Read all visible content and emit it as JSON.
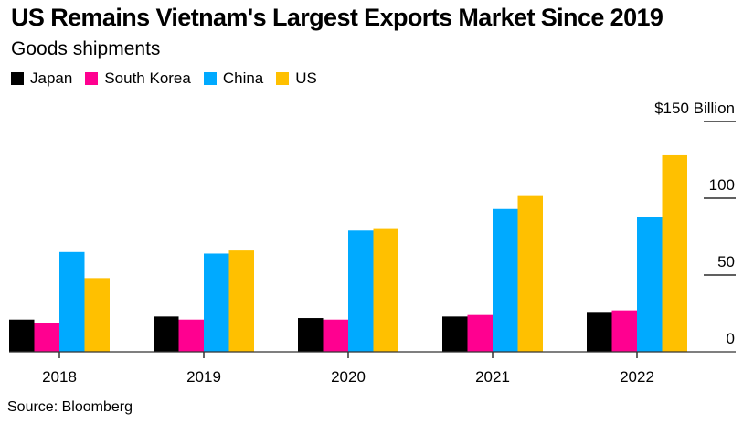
{
  "chart_data": {
    "type": "bar",
    "title": "US Remains Vietnam's Largest Exports Market Since 2019",
    "subtitle": "Goods shipments",
    "xlabel": "",
    "ylabel": "",
    "unit_label": "$150 Billion",
    "categories": [
      "2018",
      "2019",
      "2020",
      "2021",
      "2022"
    ],
    "series": [
      {
        "name": "Japan",
        "color": "#000000",
        "values": [
          21,
          23,
          22,
          23,
          26
        ]
      },
      {
        "name": "South Korea",
        "color": "#ff0090",
        "values": [
          19,
          21,
          21,
          24,
          27
        ]
      },
      {
        "name": "China",
        "color": "#00aaff",
        "values": [
          65,
          64,
          79,
          93,
          88
        ]
      },
      {
        "name": "US",
        "color": "#ffc000",
        "values": [
          48,
          66,
          80,
          102,
          128
        ]
      }
    ],
    "ylim": [
      0,
      150
    ],
    "yticks": [
      {
        "value": 0,
        "label": "0"
      },
      {
        "value": 50,
        "label": "50"
      },
      {
        "value": 100,
        "label": "100"
      },
      {
        "value": 150,
        "label": "$150 Billion"
      }
    ],
    "grid": false,
    "legend_position": "top-left",
    "source": "Source: Bloomberg"
  }
}
